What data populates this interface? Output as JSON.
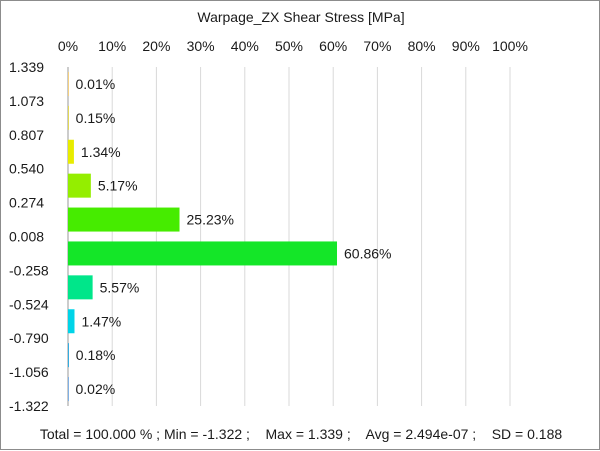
{
  "chart_data": {
    "type": "bar",
    "orientation": "horizontal",
    "title": "Warpage_ZX Shear Stress [MPa]",
    "x_axis": {
      "position": "top",
      "ticks": [
        "0%",
        "10%",
        "20%",
        "30%",
        "40%",
        "50%",
        "60%",
        "70%",
        "80%",
        "90%",
        "100%"
      ],
      "range": [
        0,
        100
      ]
    },
    "y_axis": {
      "ticks": [
        "1.339",
        "1.073",
        "0.807",
        "0.540",
        "0.274",
        "0.008",
        "-0.258",
        "-0.524",
        "-0.790",
        "-1.056",
        "-1.322"
      ]
    },
    "grid": true,
    "values": [
      0.01,
      0.15,
      1.34,
      5.17,
      25.23,
      60.86,
      5.57,
      1.47,
      0.18,
      0.02
    ],
    "value_labels": [
      "0.01%",
      "0.15%",
      "1.34%",
      "5.17%",
      "25.23%",
      "60.86%",
      "5.57%",
      "1.47%",
      "0.18%",
      "0.02%"
    ],
    "colors": [
      "#e8a200",
      "#d4c400",
      "#e8ec00",
      "#94ee00",
      "#46ec00",
      "#14e628",
      "#00e68a",
      "#00d4e8",
      "#0096d8",
      "#0060c8"
    ]
  },
  "summary": {
    "text": "Total = 100.000 % ; Min = -1.322 ;    Max = 1.339 ;    Avg = 2.494e-07 ;    SD = 0.188"
  }
}
